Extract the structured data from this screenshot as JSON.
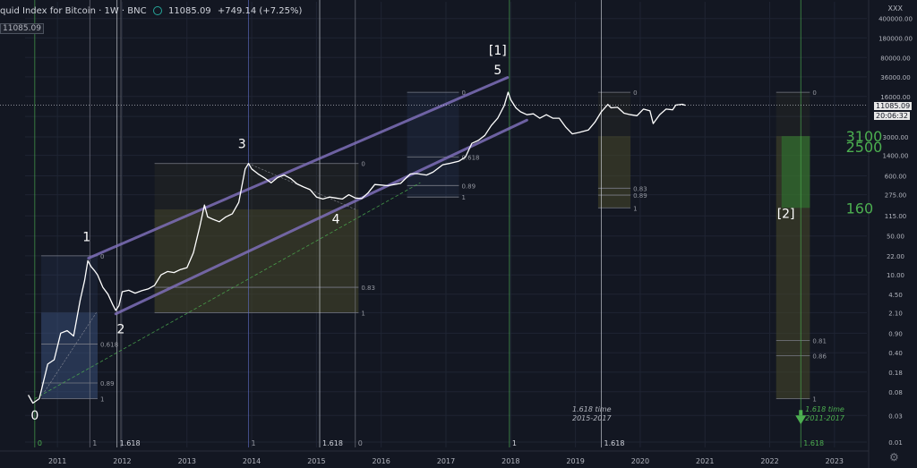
{
  "header": {
    "title": "quid Index for Bitcoin · 1W · BNC",
    "ohlc": "11085.09",
    "change": "+749.14 (+7.25%)",
    "price_box": "11085.09",
    "axis_top_label": "XXX"
  },
  "current_price_label": "11085.09",
  "countdown_label": "20:06:32",
  "chart_data": {
    "type": "line",
    "title": "",
    "y_scale": "log",
    "ylim": [
      0.008,
      800000
    ],
    "xlim": [
      2010.5,
      2023.5
    ],
    "x_ticks": [
      "2011",
      "2012",
      "2013",
      "2014",
      "2015",
      "2016",
      "2017",
      "2018",
      "2019",
      "2020",
      "2021",
      "2022",
      "2023"
    ],
    "y_ticks": [
      "400000.00",
      "180000.00",
      "80000.00",
      "36000.00",
      "16000.00",
      "7000.00",
      "3000.00",
      "1400.00",
      "600.00",
      "275.00",
      "115.00",
      "50.00",
      "22.00",
      "10.00",
      "4.50",
      "2.10",
      "0.90",
      "0.40",
      "0.18",
      "0.08",
      "0.03",
      "0.01"
    ],
    "price_series": [
      [
        2010.55,
        0.07
      ],
      [
        2010.62,
        0.05
      ],
      [
        2010.72,
        0.06
      ],
      [
        2010.85,
        0.25
      ],
      [
        2010.95,
        0.3
      ],
      [
        2011.05,
        0.9
      ],
      [
        2011.15,
        1.0
      ],
      [
        2011.25,
        0.8
      ],
      [
        2011.35,
        3.5
      ],
      [
        2011.42,
        8
      ],
      [
        2011.47,
        18
      ],
      [
        2011.52,
        14
      ],
      [
        2011.57,
        12
      ],
      [
        2011.62,
        10
      ],
      [
        2011.7,
        6
      ],
      [
        2011.78,
        4.5
      ],
      [
        2011.85,
        3
      ],
      [
        2011.9,
        2.3
      ],
      [
        2011.95,
        2.8
      ],
      [
        2012.0,
        5
      ],
      [
        2012.1,
        5.3
      ],
      [
        2012.2,
        4.7
      ],
      [
        2012.3,
        5.2
      ],
      [
        2012.4,
        5.6
      ],
      [
        2012.5,
        6.5
      ],
      [
        2012.6,
        10
      ],
      [
        2012.7,
        11.5
      ],
      [
        2012.8,
        11
      ],
      [
        2012.9,
        12.5
      ],
      [
        2013.0,
        13.5
      ],
      [
        2013.1,
        25
      ],
      [
        2013.2,
        75
      ],
      [
        2013.27,
        180
      ],
      [
        2013.32,
        110
      ],
      [
        2013.4,
        100
      ],
      [
        2013.5,
        90
      ],
      [
        2013.6,
        110
      ],
      [
        2013.7,
        125
      ],
      [
        2013.8,
        200
      ],
      [
        2013.9,
        800
      ],
      [
        2013.95,
        1000
      ],
      [
        2014.0,
        800
      ],
      [
        2014.1,
        650
      ],
      [
        2014.2,
        550
      ],
      [
        2014.3,
        450
      ],
      [
        2014.4,
        560
      ],
      [
        2014.5,
        620
      ],
      [
        2014.6,
        540
      ],
      [
        2014.7,
        430
      ],
      [
        2014.8,
        380
      ],
      [
        2014.9,
        340
      ],
      [
        2015.0,
        250
      ],
      [
        2015.1,
        230
      ],
      [
        2015.2,
        250
      ],
      [
        2015.3,
        240
      ],
      [
        2015.4,
        230
      ],
      [
        2015.5,
        275
      ],
      [
        2015.6,
        240
      ],
      [
        2015.7,
        235
      ],
      [
        2015.8,
        300
      ],
      [
        2015.9,
        420
      ],
      [
        2016.0,
        410
      ],
      [
        2016.1,
        400
      ],
      [
        2016.2,
        420
      ],
      [
        2016.3,
        440
      ],
      [
        2016.45,
        650
      ],
      [
        2016.55,
        660
      ],
      [
        2016.7,
        620
      ],
      [
        2016.8,
        700
      ],
      [
        2016.95,
        950
      ],
      [
        2017.05,
        1000
      ],
      [
        2017.2,
        1100
      ],
      [
        2017.3,
        1300
      ],
      [
        2017.4,
        2300
      ],
      [
        2017.5,
        2600
      ],
      [
        2017.6,
        3200
      ],
      [
        2017.7,
        4800
      ],
      [
        2017.8,
        6500
      ],
      [
        2017.9,
        11000
      ],
      [
        2017.96,
        19000
      ],
      [
        2018.0,
        14000
      ],
      [
        2018.08,
        10000
      ],
      [
        2018.15,
        8500
      ],
      [
        2018.25,
        7500
      ],
      [
        2018.35,
        7800
      ],
      [
        2018.45,
        6500
      ],
      [
        2018.55,
        7500
      ],
      [
        2018.65,
        6500
      ],
      [
        2018.75,
        6500
      ],
      [
        2018.85,
        4500
      ],
      [
        2018.95,
        3400
      ],
      [
        2019.05,
        3600
      ],
      [
        2019.2,
        4000
      ],
      [
        2019.3,
        5500
      ],
      [
        2019.4,
        8500
      ],
      [
        2019.5,
        11500
      ],
      [
        2019.55,
        10000
      ],
      [
        2019.65,
        10200
      ],
      [
        2019.75,
        8000
      ],
      [
        2019.85,
        7500
      ],
      [
        2019.95,
        7200
      ],
      [
        2020.05,
        9500
      ],
      [
        2020.15,
        8800
      ],
      [
        2020.2,
        5200
      ],
      [
        2020.3,
        7500
      ],
      [
        2020.4,
        9500
      ],
      [
        2020.5,
        9200
      ],
      [
        2020.55,
        11200
      ],
      [
        2020.65,
        11600
      ],
      [
        2020.7,
        11085
      ]
    ],
    "wave_labels": [
      {
        "text": "0",
        "x": 2010.65,
        "y": 0.025
      },
      {
        "text": "1",
        "x": 2011.45,
        "y": 40
      },
      {
        "text": "2",
        "x": 2011.98,
        "y": 0.9
      },
      {
        "text": "3",
        "x": 2013.85,
        "y": 1900
      },
      {
        "text": "4",
        "x": 2015.3,
        "y": 85
      },
      {
        "text": "5",
        "x": 2017.8,
        "y": 40000
      },
      {
        "text": "[1]",
        "x": 2017.8,
        "y": 90000
      },
      {
        "text": "[2]",
        "x": 2022.25,
        "y": 105
      }
    ],
    "target_labels": [
      {
        "text": "3100",
        "x": 2022.9,
        "y": 3100
      },
      {
        "text": "2500",
        "x": 2022.9,
        "y": 2000
      },
      {
        "text": "160",
        "x": 2022.9,
        "y": 160
      }
    ],
    "time_notes": [
      {
        "lines": [
          "1.618 time",
          "2015-2017"
        ],
        "x": 2018.95,
        "y": 0.035,
        "color": "#b2b5be"
      },
      {
        "lines": [
          "1.618 time",
          "2011-2017"
        ],
        "x": 2022.55,
        "y": 0.035,
        "color": "#4caf50"
      }
    ],
    "vertical_line_labels": [
      {
        "text": "0",
        "x": 2010.65,
        "color": "#4caf50"
      },
      {
        "text": "1",
        "x": 2011.5,
        "color": "#9598a1"
      },
      {
        "text": "1.618",
        "x": 2011.92,
        "color": "#d1d4dc"
      },
      {
        "text": "1",
        "x": 2013.95,
        "color": "#9598a1"
      },
      {
        "text": "1.618",
        "x": 2015.05,
        "color": "#d1d4dc"
      },
      {
        "text": "0",
        "x": 2015.6,
        "color": "#9598a1"
      },
      {
        "text": "1",
        "x": 2017.98,
        "color": "#d1d4dc"
      },
      {
        "text": "1.618",
        "x": 2019.4,
        "color": "#d1d4dc"
      },
      {
        "text": "1.618",
        "x": 2022.48,
        "color": "#4caf50"
      }
    ],
    "fib_boxes": [
      {
        "x0": 2010.75,
        "x1": 2011.62,
        "top": 22,
        "bottom": 0.06,
        "levels": [
          "0",
          "0.618",
          "0.89",
          "1"
        ],
        "fill_zone": [
          2.1,
          0.06
        ],
        "fill": "#3a4f7a"
      },
      {
        "x0": 2012.5,
        "x1": 2015.65,
        "top": 1000,
        "bottom": 2.1,
        "levels": [
          "0",
          "0.83",
          "1"
        ],
        "fill_zone": [
          150,
          2.1
        ],
        "fill": "#4a4a2a"
      },
      {
        "x0": 2016.4,
        "x1": 2017.2,
        "top": 19000,
        "bottom": 250,
        "levels": [
          "0",
          "0.618",
          "0.89",
          "1"
        ],
        "fill_zone": null,
        "fill": "#3a4f7a"
      },
      {
        "x0": 2019.35,
        "x1": 2019.85,
        "top": 19000,
        "bottom": 160,
        "levels": [
          "0",
          "0.83",
          "0.89",
          "1"
        ],
        "fill_zone": [
          3100,
          160
        ],
        "fill": "#4a4a2a"
      },
      {
        "x0": 2022.1,
        "x1": 2022.62,
        "top": 19000,
        "bottom": 0.06,
        "levels": [
          "0",
          "0.81",
          "0.86",
          "1"
        ],
        "fill_zone": [
          3100,
          0.06
        ],
        "fill": "#4a4a2a"
      }
    ]
  }
}
